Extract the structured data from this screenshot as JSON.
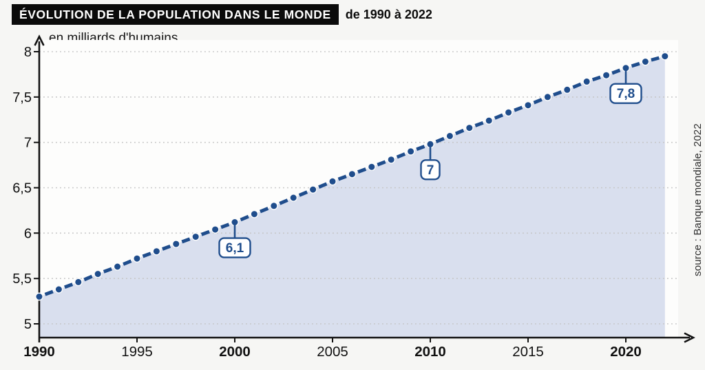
{
  "header": {
    "title": "ÉVOLUTION DE LA POPULATION DANS LE MONDE",
    "subtitle": "de 1990 à 2022"
  },
  "chart": {
    "unit_label": "en milliards d'humains",
    "source": "source : Banque mondiale, 2022"
  },
  "colors": {
    "line": "#1f4d8c",
    "area": "#d9dfee",
    "grid": "#c5c5c5",
    "axis": "#111111",
    "plot_bg": "#fdfdfc",
    "page_bg": "#f6f6f4",
    "callout_bg": "#ffffff",
    "title_bg": "#0b0b0b",
    "title_fg": "#ffffff"
  },
  "chart_data": {
    "type": "line",
    "title": "ÉVOLUTION DE LA POPULATION DANS LE MONDE de 1990 à 2022",
    "xlabel": "",
    "ylabel": "en milliards d'humains",
    "source": "source : Banque mondiale, 2022",
    "xlim": [
      1990,
      2022
    ],
    "ylim": [
      5,
      8
    ],
    "grid": "horizontal-dotted",
    "legend": "none",
    "line_style": "dashed-with-dots",
    "area_fill": true,
    "x": [
      1990,
      1991,
      1992,
      1993,
      1994,
      1995,
      1996,
      1997,
      1998,
      1999,
      2000,
      2001,
      2002,
      2003,
      2004,
      2005,
      2006,
      2007,
      2008,
      2009,
      2010,
      2011,
      2012,
      2013,
      2014,
      2015,
      2016,
      2017,
      2018,
      2019,
      2020,
      2021,
      2022
    ],
    "values": [
      5.3,
      5.38,
      5.46,
      5.55,
      5.63,
      5.72,
      5.8,
      5.88,
      5.96,
      6.04,
      6.12,
      6.21,
      6.3,
      6.39,
      6.48,
      6.57,
      6.65,
      6.73,
      6.81,
      6.9,
      6.98,
      7.07,
      7.16,
      7.24,
      7.33,
      7.41,
      7.5,
      7.58,
      7.67,
      7.74,
      7.82,
      7.89,
      7.95
    ],
    "x_ticks": [
      {
        "year": 1990,
        "label": "1990",
        "bold": true
      },
      {
        "year": 1995,
        "label": "1995",
        "bold": false
      },
      {
        "year": 2000,
        "label": "2000",
        "bold": true
      },
      {
        "year": 2005,
        "label": "2005",
        "bold": false
      },
      {
        "year": 2010,
        "label": "2010",
        "bold": true
      },
      {
        "year": 2015,
        "label": "2015",
        "bold": false
      },
      {
        "year": 2020,
        "label": "2020",
        "bold": true
      }
    ],
    "y_ticks": [
      {
        "value": 5,
        "label": "5"
      },
      {
        "value": 5.5,
        "label": "5,5"
      },
      {
        "value": 6,
        "label": "6"
      },
      {
        "value": 6.5,
        "label": "6,5"
      },
      {
        "value": 7,
        "label": "7"
      },
      {
        "value": 7.5,
        "label": "7,5"
      },
      {
        "value": 8,
        "label": "8"
      }
    ],
    "annotations": [
      {
        "year": 2000,
        "label": "6,1"
      },
      {
        "year": 2010,
        "label": "7"
      },
      {
        "year": 2020,
        "label": "7,8"
      }
    ]
  }
}
